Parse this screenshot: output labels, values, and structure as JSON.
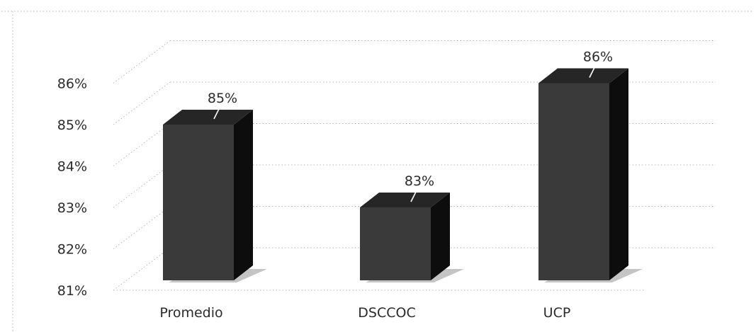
{
  "chart_data": {
    "type": "bar",
    "style": "3d-column",
    "categories": [
      "Promedio",
      "DSCCOC",
      "UCP"
    ],
    "values": [
      85,
      83,
      86
    ],
    "data_labels": [
      "85%",
      "83%",
      "86%"
    ],
    "yticks": [
      "81%",
      "82%",
      "83%",
      "84%",
      "85%",
      "86%"
    ],
    "ytick_values": [
      81,
      82,
      83,
      84,
      85,
      86
    ],
    "ylim": [
      81,
      86
    ],
    "title": "",
    "xlabel": "",
    "ylabel": "",
    "grid": true,
    "legend": false,
    "colors": {
      "bar_front": "#3a3a3a",
      "bar_top": "#262626",
      "bar_side": "#0d0d0d",
      "shadow": "#c4c4c4",
      "grid": "#b5b5b5",
      "text": "#2b2b2b"
    }
  }
}
